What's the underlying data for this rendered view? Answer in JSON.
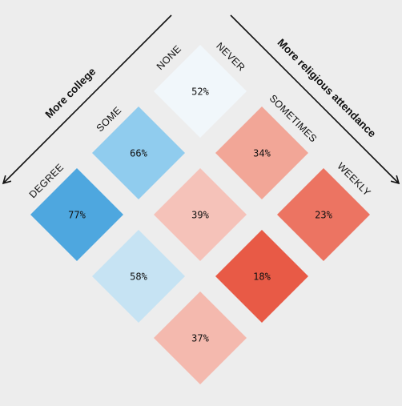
{
  "chart_data": {
    "type": "heatmap",
    "left_axis": {
      "title": "More college",
      "categories": [
        "NONE",
        "SOME",
        "DEGREE"
      ]
    },
    "right_axis": {
      "title": "More religious attendance",
      "categories": [
        "NEVER",
        "SOMETIMES",
        "WEEKLY"
      ]
    },
    "cells": [
      {
        "college": "NONE",
        "attendance": "NEVER",
        "label": "52%",
        "value": 52,
        "color": "#f1f7fb"
      },
      {
        "college": "SOME",
        "attendance": "NEVER",
        "label": "66%",
        "value": 66,
        "color": "#90ccee"
      },
      {
        "college": "DEGREE",
        "attendance": "NEVER",
        "label": "77%",
        "value": 77,
        "color": "#4ea7df"
      },
      {
        "college": "NONE",
        "attendance": "SOMETIMES",
        "label": "34%",
        "value": 34,
        "color": "#f2a697"
      },
      {
        "college": "SOME",
        "attendance": "SOMETIMES",
        "label": "39%",
        "value": 39,
        "color": "#f5c2b9"
      },
      {
        "college": "DEGREE",
        "attendance": "SOMETIMES",
        "label": "58%",
        "value": 58,
        "color": "#c6e3f3"
      },
      {
        "college": "NONE",
        "attendance": "WEEKLY",
        "label": "23%",
        "value": 23,
        "color": "#ec7462"
      },
      {
        "college": "SOME",
        "attendance": "WEEKLY",
        "label": "18%",
        "value": 18,
        "color": "#e85a46"
      },
      {
        "college": "DEGREE",
        "attendance": "WEEKLY",
        "label": "37%",
        "value": 37,
        "color": "#f4b9ae"
      }
    ]
  }
}
